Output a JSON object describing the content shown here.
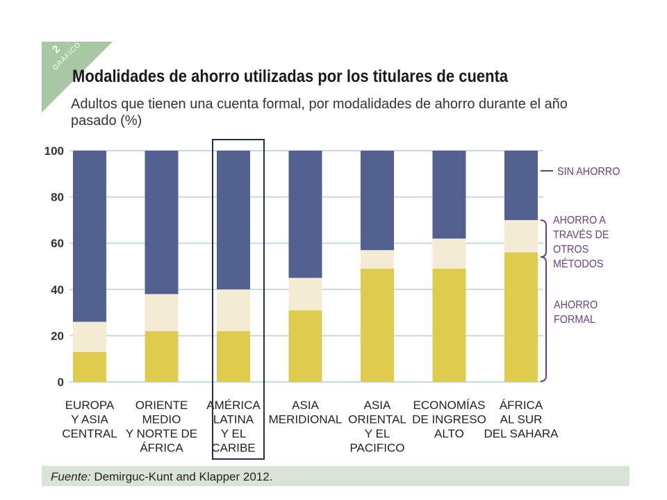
{
  "badge": {
    "number": "2",
    "word": "GRÁFICO",
    "color": "#a8c7a3"
  },
  "title": "Modalidades de ahorro utilizadas por los titulares de cuenta",
  "subtitle": "Adultos que tienen una cuenta formal, por modalidades de ahorro durante el año pasado (%)",
  "source": {
    "label": "Fuente:",
    "text": " Demirguc-Kunt and Klapper 2012."
  },
  "chart_data": {
    "type": "bar",
    "stacked": true,
    "categories": [
      [
        "EUROPA",
        "Y ASIA",
        "CENTRAL"
      ],
      [
        "ORIENTE",
        "MEDIO",
        "Y NORTE DE",
        "ÁFRICA"
      ],
      [
        "AMÉRICA",
        "LATINA",
        "Y EL",
        "CARIBE"
      ],
      [
        "ASIA",
        "MERIDIONAL"
      ],
      [
        "ASIA",
        "ORIENTAL",
        "Y EL",
        "PACIFICO"
      ],
      [
        "ECONOMÍAS",
        "DE INGRESO",
        "ALTO"
      ],
      [
        "ÁFRICA",
        "AL SUR",
        "DEL SAHARA"
      ]
    ],
    "series": [
      {
        "name": "AHORRO FORMAL",
        "color": "#dfcb4d",
        "values": [
          13,
          22,
          22,
          31,
          49,
          49,
          56
        ]
      },
      {
        "name": "AHORRO A TRAVÉS DE OTROS MÉTODOS",
        "color": "#f3ecd3",
        "values": [
          13,
          16,
          18,
          14,
          8,
          13,
          14
        ]
      },
      {
        "name": "SIN AHORRO",
        "color": "#52618f",
        "values": [
          74,
          62,
          60,
          55,
          43,
          38,
          30
        ]
      }
    ],
    "legend_labels": {
      "sin_ahorro": [
        "SIN AHORRO"
      ],
      "otros": [
        "AHORRO A",
        "TRAVÉS DE",
        "OTROS",
        "MÉTODOS"
      ],
      "formal": [
        "AHORRO",
        "FORMAL"
      ]
    },
    "highlighted_category": 2,
    "ylim": [
      0,
      100
    ],
    "yticks": [
      0,
      20,
      40,
      60,
      80,
      100
    ],
    "grid": true,
    "legend_position": "right",
    "xlabel": "",
    "ylabel": ""
  }
}
